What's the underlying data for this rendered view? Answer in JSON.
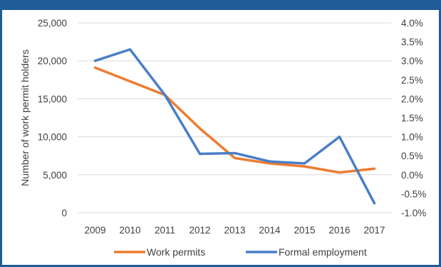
{
  "chart_data": {
    "type": "line",
    "categories": [
      "2009",
      "2010",
      "2011",
      "2012",
      "2013",
      "2014",
      "2015",
      "2016",
      "2017"
    ],
    "ylabel": "Number of work permit holders",
    "ylim": [
      0,
      25000
    ],
    "y_ticks": [
      "0",
      "5,000",
      "10,000",
      "15,000",
      "20,000",
      "25,000"
    ],
    "y2lim": [
      -1.0,
      4.0
    ],
    "y2_ticks": [
      "-1.0%",
      "-0.5%",
      "0.0%",
      "0.5%",
      "1.0%",
      "1.5%",
      "2.0%",
      "2.5%",
      "3.0%",
      "3.5%",
      "4.0%"
    ],
    "grid": true,
    "legend_position": "bottom",
    "series": [
      {
        "name": "Work permits",
        "axis": "left",
        "color": "#ed7d31",
        "values": [
          19100,
          17300,
          15500,
          11100,
          7200,
          6500,
          6100,
          5300,
          5800
        ]
      },
      {
        "name": "Formal employment",
        "axis": "right",
        "color": "#4a7ec8",
        "values": [
          3.0,
          3.3,
          2.1,
          0.55,
          0.57,
          0.35,
          0.3,
          1.0,
          -0.75
        ]
      }
    ]
  }
}
